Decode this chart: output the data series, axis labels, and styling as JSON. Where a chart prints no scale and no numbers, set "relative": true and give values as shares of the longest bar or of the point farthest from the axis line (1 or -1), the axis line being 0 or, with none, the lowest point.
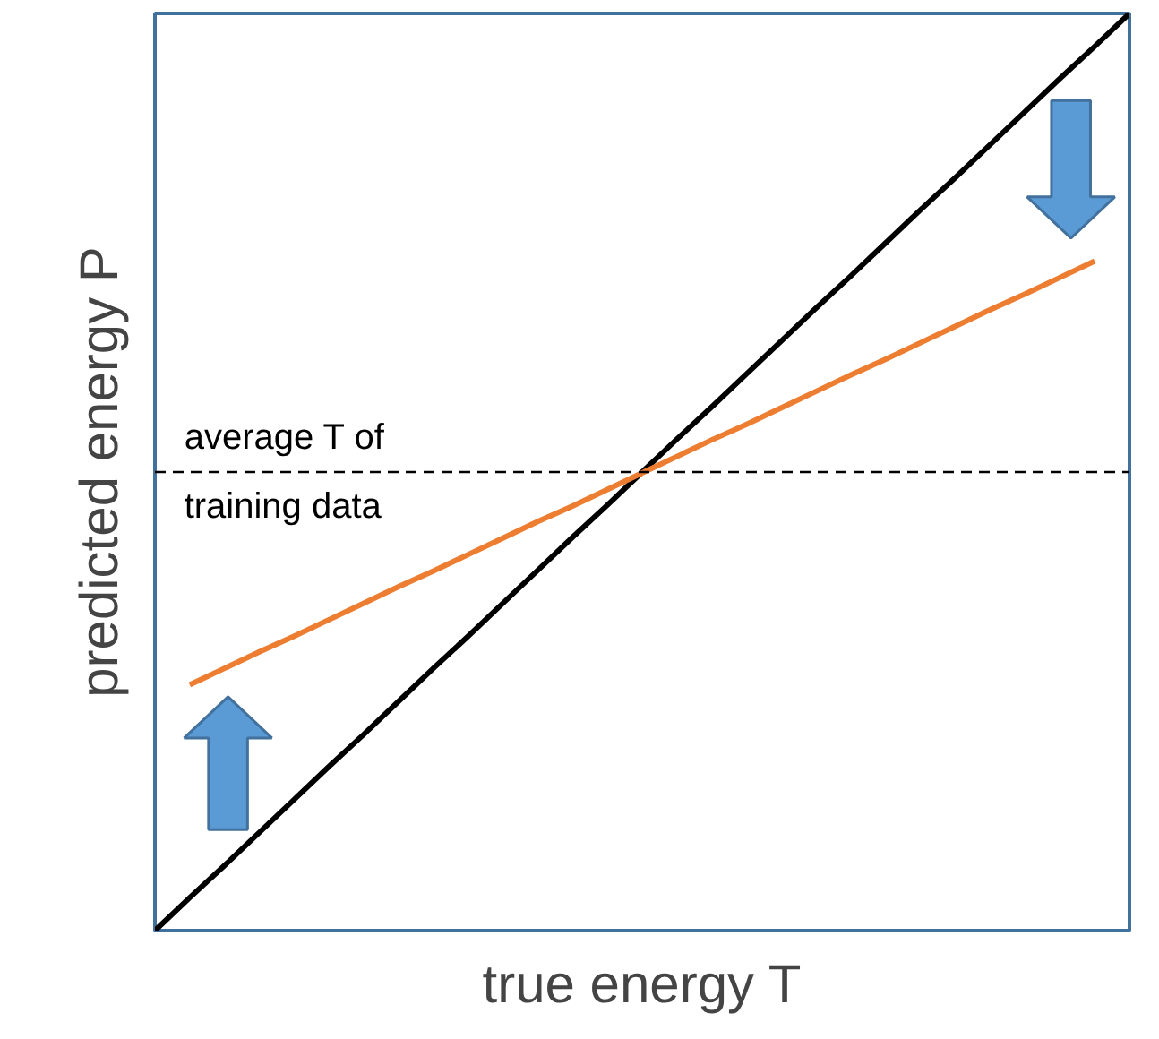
{
  "chart_data": {
    "type": "line",
    "relative": true,
    "xlabel": "true energy T",
    "ylabel": "predicted energy P",
    "categories": [
      null,
      null,
      null,
      null,
      null,
      null,
      null,
      null,
      null,
      null,
      null,
      null,
      null,
      null,
      null,
      null,
      null,
      null,
      null,
      null,
      null,
      null,
      null,
      null,
      null,
      null,
      null,
      null,
      null
    ],
    "series": [
      {
        "color": "#000000",
        "values": [
          0,
          0.036,
          0.071,
          0.107,
          0.143,
          0.179,
          0.214,
          0.25,
          0.286,
          0.321,
          0.357,
          0.393,
          0.429,
          0.464,
          0.5,
          0.536,
          0.571,
          0.607,
          0.643,
          0.679,
          0.714,
          0.75,
          0.786,
          0.821,
          0.857,
          0.893,
          0.929,
          0.964,
          1
        ]
      },
      {
        "color": "#ed7d31",
        "values": [
          null,
          0.268,
          0.286,
          0.304,
          0.321,
          0.339,
          0.357,
          0.375,
          0.392,
          0.41,
          0.428,
          0.446,
          0.463,
          0.481,
          0.499,
          0.517,
          0.535,
          0.552,
          0.57,
          0.588,
          0.606,
          0.623,
          0.641,
          0.659,
          0.677,
          0.694,
          0.712,
          0.73,
          null
        ]
      }
    ],
    "ref_lines": [
      {
        "axis": "y",
        "value": 0.5,
        "label": "average T of\ntraining data",
        "color": "#000000",
        "line_style": "dashed"
      }
    ],
    "grid": false,
    "marker": "none",
    "line_style": "solid"
  }
}
